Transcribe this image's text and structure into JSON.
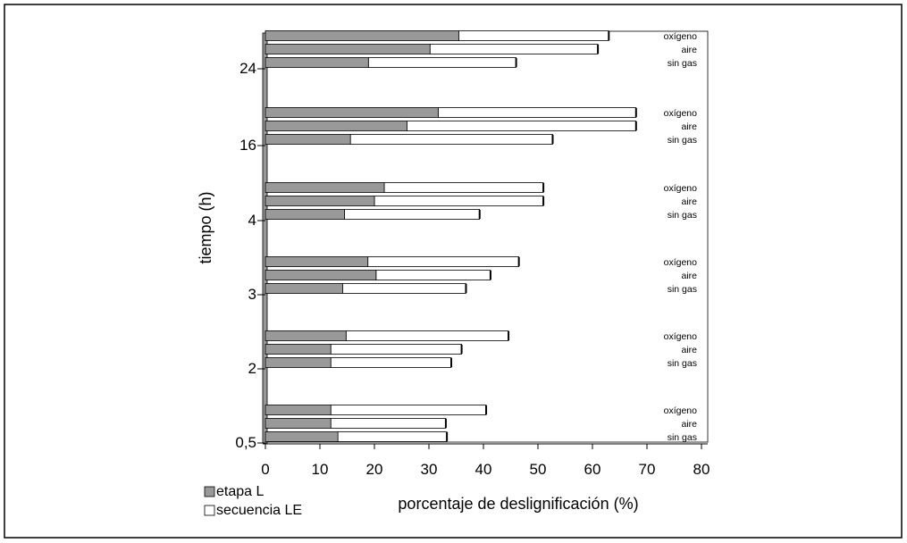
{
  "chart_data": {
    "type": "bar",
    "orientation": "horizontal",
    "stacked": true,
    "categories": [
      "0,5",
      "2",
      "3",
      "4",
      "16",
      "24"
    ],
    "conditions": [
      "sin gas",
      "aire",
      "oxígeno"
    ],
    "series": [
      {
        "name": "etapa L",
        "color": "#999999",
        "values": {
          "0,5": [
            13.3,
            12.0,
            12.0
          ],
          "2": [
            12.0,
            12.0,
            14.8
          ],
          "3": [
            14.2,
            20.3,
            18.8
          ],
          "4": [
            14.5,
            20.0,
            21.8
          ],
          "16": [
            15.6,
            26.0,
            31.7
          ],
          "24": [
            18.9,
            30.2,
            35.5
          ]
        }
      },
      {
        "name": "secuencia LE",
        "color": "#ffffff",
        "values": {
          "0,5": [
            33.3,
            33.1,
            40.5
          ],
          "2": [
            34.1,
            36.0,
            44.6
          ],
          "3": [
            36.8,
            41.3,
            46.5
          ],
          "4": [
            39.3,
            51.0,
            51.0
          ],
          "16": [
            52.7,
            68.0,
            68.0
          ],
          "24": [
            46.0,
            61.0,
            63.0
          ]
        }
      }
    ],
    "xlabel": "porcentaje de deslignificación (%)",
    "ylabel": "tiempo (h)",
    "xlim": [
      0,
      80
    ],
    "xticks": [
      "0",
      "10",
      "20",
      "30",
      "40",
      "50",
      "60",
      "70",
      "80"
    ],
    "legend": [
      "etapa L",
      "secuencia LE"
    ],
    "legend_position": "bottom-left",
    "grid": false
  }
}
